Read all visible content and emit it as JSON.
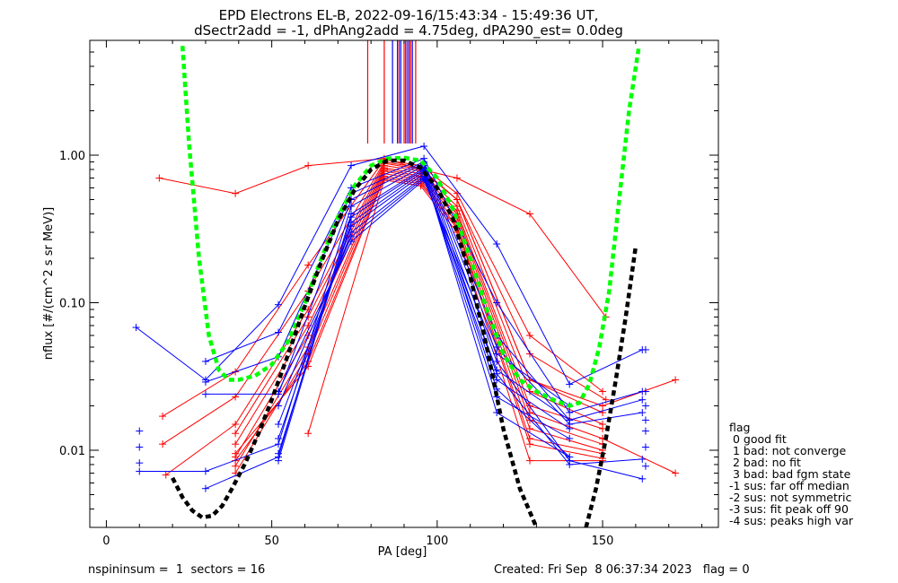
{
  "title_line1": "EPD Electrons EL-B, 2022-09-16/15:43:34 - 15:49:36 UT,",
  "title_line2": "dSectr2add = -1, dPhAng2add = 4.75deg, dPA290_est=   0.0deg",
  "footer": {
    "left": "nspininsum =  1  sectors = 16",
    "right": "Created: Fri Sep  8 06:37:34 2023   flag = 0"
  },
  "legend": {
    "title": "flag",
    "items": [
      " 0 good fit",
      " 1 bad: not converge",
      " 2 bad: no fit",
      " 3 bad: bad fgm state",
      "-1 sus: far off median",
      "-2 sus: not symmetric",
      "-3 sus: fit peak off 90",
      "-4 sus: peaks high var"
    ]
  },
  "colors": {
    "red": "#ff0000",
    "blue": "#0000ff",
    "green": "#00ff00",
    "black": "#000000"
  },
  "chart_data": {
    "type": "line",
    "title": "EPD Electrons EL-B, 2022-09-16/15:43:34 - 15:49:36 UT, dSectr2add = -1, dPhAng2add = 4.75deg, dPA290_est=   0.0deg",
    "xlabel": "PA [deg]",
    "ylabel": "nflux [#/(cm^2 s sr MeV)]",
    "xlim": [
      -5,
      185
    ],
    "ylim": [
      0.003,
      6.0
    ],
    "yscale": "log",
    "xticks": [
      0,
      50,
      100,
      150
    ],
    "yticks": [
      {
        "value": 0.01,
        "label": "0.01"
      },
      {
        "value": 0.1,
        "label": "0.10"
      },
      {
        "value": 1.0,
        "label": "1.00"
      }
    ],
    "series": [
      {
        "color": "red",
        "x": [
          16,
          39,
          61,
          84,
          95,
          106,
          128,
          151
        ],
        "y": [
          0.7,
          0.55,
          0.85,
          0.95,
          0.8,
          0.7,
          0.4,
          0.08
        ]
      },
      {
        "color": "red",
        "x": [
          17,
          39,
          61,
          84,
          95,
          106,
          128,
          150
        ],
        "y": [
          0.017,
          0.034,
          0.18,
          0.93,
          0.85,
          0.55,
          0.06,
          0.025
        ]
      },
      {
        "color": "red",
        "x": [
          17,
          39,
          61,
          84,
          95,
          106,
          128,
          151
        ],
        "y": [
          0.011,
          0.023,
          0.12,
          0.9,
          0.82,
          0.5,
          0.045,
          0.022
        ]
      },
      {
        "color": "red",
        "x": [
          18,
          39,
          61,
          84,
          95,
          106,
          128,
          150
        ],
        "y": [
          0.0068,
          0.015,
          0.09,
          0.88,
          0.8,
          0.5,
          0.03,
          0.018
        ]
      },
      {
        "color": "red",
        "x": [
          39,
          61,
          84,
          95,
          106,
          128,
          150
        ],
        "y": [
          0.013,
          0.08,
          0.85,
          0.78,
          0.45,
          0.025,
          0.015
        ]
      },
      {
        "color": "red",
        "x": [
          39,
          61,
          84,
          95,
          106,
          128,
          150
        ],
        "y": [
          0.011,
          0.07,
          0.82,
          0.75,
          0.42,
          0.02,
          0.014
        ]
      },
      {
        "color": "red",
        "x": [
          39,
          61,
          84,
          95,
          106,
          128,
          150
        ],
        "y": [
          0.009,
          0.06,
          0.8,
          0.72,
          0.4,
          0.018,
          0.012
        ]
      },
      {
        "color": "red",
        "x": [
          39,
          61,
          84,
          95,
          106,
          128,
          150
        ],
        "y": [
          0.0078,
          0.05,
          0.78,
          0.7,
          0.38,
          0.016,
          0.011
        ]
      },
      {
        "color": "red",
        "x": [
          39,
          61,
          84,
          95,
          106,
          128,
          150
        ],
        "y": [
          0.007,
          0.045,
          0.75,
          0.68,
          0.35,
          0.014,
          0.01
        ]
      },
      {
        "color": "red",
        "x": [
          39,
          61,
          84,
          95,
          106,
          128,
          150
        ],
        "y": [
          0.0085,
          0.04,
          0.72,
          0.66,
          0.33,
          0.012,
          0.0095
        ]
      },
      {
        "color": "red",
        "x": [
          39,
          61,
          84,
          95,
          106,
          128,
          150
        ],
        "y": [
          0.0095,
          0.037,
          0.7,
          0.64,
          0.32,
          0.011,
          0.0088
        ]
      },
      {
        "color": "red",
        "x": [
          61,
          84,
          95,
          106,
          128,
          150
        ],
        "y": [
          0.013,
          0.68,
          0.62,
          0.3,
          0.0085,
          0.0085
        ]
      },
      {
        "color": "red",
        "x": [
          106,
          128,
          150,
          172
        ],
        "y": [
          0.5,
          0.03,
          0.02,
          0.03
        ]
      },
      {
        "color": "red",
        "x": [
          150,
          172
        ],
        "y": [
          0.012,
          0.007
        ]
      },
      {
        "color": "blue",
        "x": [
          9,
          30,
          52,
          74,
          96,
          118,
          140,
          162
        ],
        "y": [
          0.068,
          0.03,
          0.097,
          0.85,
          1.15,
          0.25,
          0.028,
          0.048
        ]
      },
      {
        "color": "blue",
        "x": [
          30,
          52,
          74,
          96,
          118,
          140,
          162
        ],
        "y": [
          0.04,
          0.063,
          0.6,
          0.95,
          0.1,
          0.018,
          0.025
        ]
      },
      {
        "color": "blue",
        "x": [
          30,
          52,
          74,
          96,
          118,
          140,
          162
        ],
        "y": [
          0.029,
          0.043,
          0.55,
          0.9,
          0.06,
          0.016,
          0.022
        ]
      },
      {
        "color": "blue",
        "x": [
          30,
          52,
          74,
          96,
          118,
          140,
          162
        ],
        "y": [
          0.024,
          0.024,
          0.5,
          0.88,
          0.05,
          0.015,
          0.018
        ]
      },
      {
        "color": "blue",
        "x": [
          10,
          30,
          52,
          74,
          96,
          118,
          140,
          162
        ],
        "y": [
          0.0072,
          0.0072,
          0.011,
          0.45,
          0.85,
          0.04,
          0.0085,
          0.0064
        ]
      },
      {
        "color": "blue",
        "x": [
          30,
          52,
          74,
          96,
          118,
          140,
          162
        ],
        "y": [
          0.0055,
          0.009,
          0.4,
          0.82,
          0.033,
          0.008,
          0.0087
        ]
      },
      {
        "color": "blue",
        "x": [
          52,
          74,
          96,
          118,
          140
        ],
        "y": [
          0.0085,
          0.38,
          0.8,
          0.026,
          0.009
        ]
      },
      {
        "color": "blue",
        "x": [
          52,
          74,
          96,
          118,
          140
        ],
        "y": [
          0.0095,
          0.35,
          0.78,
          0.018,
          0.009
        ]
      },
      {
        "color": "blue",
        "x": [
          52,
          74,
          96,
          118,
          140
        ],
        "y": [
          0.012,
          0.33,
          0.75,
          0.023,
          0.012
        ]
      },
      {
        "color": "blue",
        "x": [
          52,
          74,
          96,
          118,
          140
        ],
        "y": [
          0.015,
          0.3,
          0.72,
          0.03,
          0.014
        ]
      },
      {
        "color": "blue",
        "x": [
          52,
          74,
          96,
          118,
          140
        ],
        "y": [
          0.02,
          0.28,
          0.7,
          0.035,
          0.016
        ]
      },
      {
        "color": "blue",
        "x": [
          52,
          74,
          96,
          118,
          140
        ],
        "y": [
          0.025,
          0.26,
          0.68,
          0.045,
          0.02
        ]
      }
    ],
    "fits": [
      {
        "name": "",
        "color": "green",
        "style": "dashed",
        "x": [
          23,
          25,
          28,
          31,
          34,
          37,
          40,
          45,
          50,
          55,
          60,
          65,
          70,
          75,
          80,
          85,
          90,
          95,
          100,
          105,
          110,
          115,
          120,
          125,
          130,
          135,
          140,
          143,
          146,
          149,
          152,
          155,
          158,
          161
        ],
        "y": [
          5.5,
          1.2,
          0.2,
          0.06,
          0.035,
          0.03,
          0.03,
          0.032,
          0.038,
          0.055,
          0.1,
          0.2,
          0.38,
          0.62,
          0.85,
          0.95,
          0.96,
          0.92,
          0.7,
          0.42,
          0.2,
          0.09,
          0.045,
          0.03,
          0.025,
          0.022,
          0.02,
          0.021,
          0.028,
          0.05,
          0.12,
          0.5,
          2.0,
          5.5
        ]
      },
      {
        "name": "",
        "color": "black",
        "style": "dashed",
        "x": [
          20,
          23,
          26,
          29,
          32,
          35,
          38,
          42,
          46,
          50,
          55,
          60,
          65,
          70,
          75,
          80,
          85,
          90,
          95,
          100,
          105,
          110,
          115,
          120,
          125,
          130
        ],
        "y": [
          0.0065,
          0.0048,
          0.0039,
          0.0035,
          0.0036,
          0.0042,
          0.0055,
          0.0082,
          0.013,
          0.022,
          0.045,
          0.095,
          0.19,
          0.36,
          0.58,
          0.8,
          0.92,
          0.92,
          0.82,
          0.6,
          0.36,
          0.15,
          0.05,
          0.014,
          0.0055,
          0.003
        ]
      },
      {
        "name": "",
        "color": "black",
        "style": "dashed",
        "x": [
          145,
          148,
          151,
          154,
          157,
          160
        ],
        "y": [
          0.003,
          0.0055,
          0.012,
          0.03,
          0.08,
          0.24
        ]
      }
    ],
    "vlines": [
      {
        "color": "red",
        "x": [
          79,
          84,
          88.5,
          90,
          91,
          92,
          93.5
        ]
      },
      {
        "color": "blue",
        "x": [
          86.5,
          88,
          89,
          90.5,
          91.5,
          92.5
        ]
      }
    ],
    "edge_marks_blue_right": [
      0.048,
      0.025,
      0.02,
      0.016,
      0.0135,
      0.0105,
      0.0078
    ],
    "edge_marks_blue_left": [
      0.0135,
      0.0105,
      0.0082
    ]
  }
}
